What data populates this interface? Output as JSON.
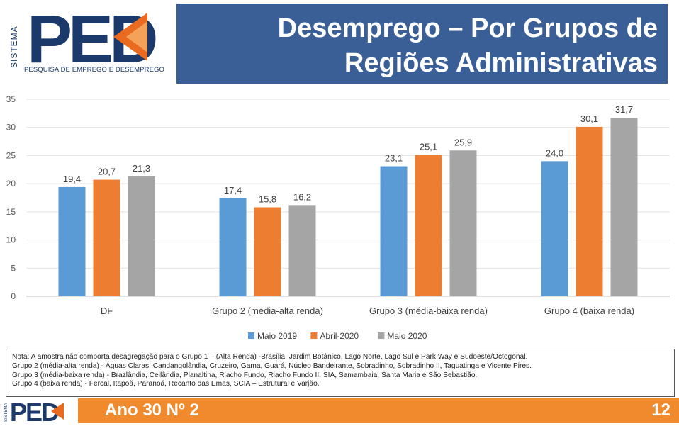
{
  "header": {
    "title_line1": "Desemprego – Por Grupos de",
    "title_line2": "Regiões Administrativas",
    "logo_sistema": "SISTEMA",
    "logo_text": "PED",
    "logo_subtitle": "PESQUISA DE EMPREGO E DESEMPREGO"
  },
  "colors": {
    "title_bar": "#3a5f97",
    "footer_bar": "#f1892d",
    "logo_blue": "#1b3a6b",
    "logo_orange": "#ea6b1f"
  },
  "chart_data": {
    "type": "bar",
    "categories": [
      "DF",
      "Grupo 2 (média-alta renda)",
      "Grupo 3 (média-baixa renda)",
      "Grupo 4 (baixa renda)"
    ],
    "series": [
      {
        "name": "Maio 2019",
        "color": "#5b9bd5",
        "values": [
          19.4,
          17.4,
          23.1,
          24.0
        ],
        "labels": [
          "19,4",
          "17,4",
          "23,1",
          "24,0"
        ]
      },
      {
        "name": "Abril-2020",
        "color": "#ed7d31",
        "values": [
          20.7,
          15.8,
          25.1,
          30.1
        ],
        "labels": [
          "20,7",
          "15,8",
          "25,1",
          "30,1"
        ]
      },
      {
        "name": "Maio 2020",
        "color": "#a5a5a5",
        "values": [
          21.3,
          16.2,
          25.9,
          31.7
        ],
        "labels": [
          "21,3",
          "16,2",
          "25,9",
          "31,7"
        ]
      }
    ],
    "ylim": [
      0,
      35
    ],
    "yticks": [
      0,
      5,
      10,
      15,
      20,
      25,
      30,
      35
    ],
    "grid": true,
    "legend_position": "bottom"
  },
  "note": {
    "lines": [
      "Nota: A amostra não comporta desagregação para o Grupo 1 – (Alta Renda) -Brasília, Jardim Botânico, Lago Norte, Lago Sul e Park Way e Sudoeste/Octogonal.",
      "Grupo 2 (média-alta renda) - Águas Claras, Candangolândia, Cruzeiro, Gama, Guará, Núcleo Bandeirante, Sobradinho, Sobradinho II, Taguatinga e Vicente Pires.",
      "Grupo 3 (média-baixa renda) - Brazlândia, Ceilândia, Planaltina, Riacho Fundo, Riacho Fundo II, SIA, Samambaia, Santa Maria e São Sebastião.",
      "Grupo 4 (baixa renda) - Fercal, Itapoã, Paranoá, Recanto das Emas, SCIA – Estrutural e Varjão."
    ]
  },
  "footer": {
    "logo_sistema": "SISTEMA",
    "logo_text": "PED",
    "edition": "Ano 30  Nº 2",
    "page_number": "12"
  }
}
